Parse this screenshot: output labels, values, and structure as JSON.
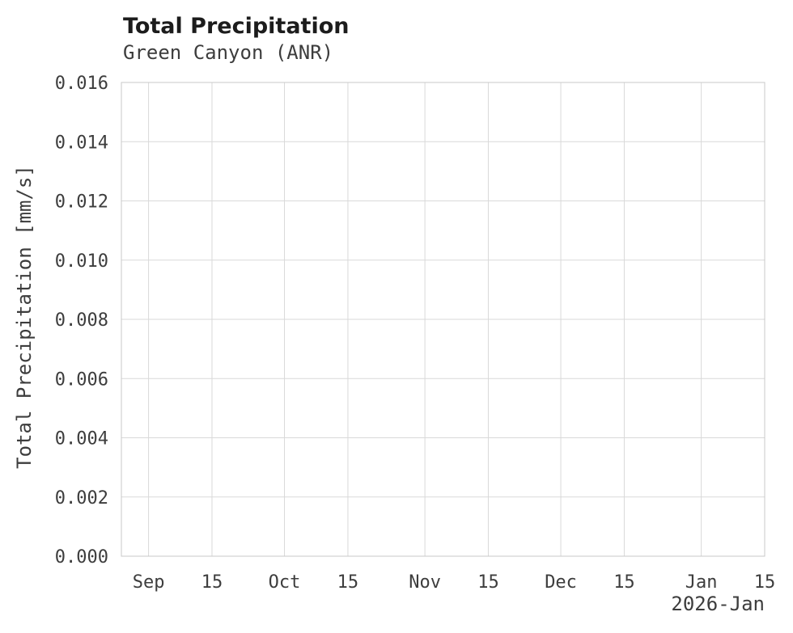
{
  "chart_data": {
    "type": "line",
    "title": "Total Precipitation",
    "subtitle": "Green Canyon (ANR)",
    "ylabel": "Total Precipitation [mm/s]",
    "xlabel": "",
    "x_axis_corner_label": "2026-Jan",
    "ylim": [
      0.0,
      0.016
    ],
    "yticks": [
      {
        "value": 0.0,
        "label": "0.000"
      },
      {
        "value": 0.002,
        "label": "0.002"
      },
      {
        "value": 0.004,
        "label": "0.004"
      },
      {
        "value": 0.006,
        "label": "0.006"
      },
      {
        "value": 0.008,
        "label": "0.008"
      },
      {
        "value": 0.01,
        "label": "0.010"
      },
      {
        "value": 0.012,
        "label": "0.012"
      },
      {
        "value": 0.014,
        "label": "0.014"
      },
      {
        "value": 0.016,
        "label": "0.016"
      }
    ],
    "xlim": [
      "2025-08-26",
      "2026-01-15"
    ],
    "xticks": [
      {
        "date": "2025-09-01",
        "label": "Sep"
      },
      {
        "date": "2025-09-15",
        "label": "15"
      },
      {
        "date": "2025-10-01",
        "label": "Oct"
      },
      {
        "date": "2025-10-15",
        "label": "15"
      },
      {
        "date": "2025-11-01",
        "label": "Nov"
      },
      {
        "date": "2025-11-15",
        "label": "15"
      },
      {
        "date": "2025-12-01",
        "label": "Dec"
      },
      {
        "date": "2025-12-15",
        "label": "15"
      },
      {
        "date": "2026-01-01",
        "label": "Jan"
      },
      {
        "date": "2026-01-15",
        "label": "15"
      }
    ],
    "grid": true,
    "legend": false,
    "series": [],
    "colors": {
      "background": "#ffffff",
      "grid": "#d9d9d9",
      "plot_border": "#c8c8c8",
      "tick_text": "#3d3d3d",
      "title_text": "#1c1c1c"
    }
  }
}
